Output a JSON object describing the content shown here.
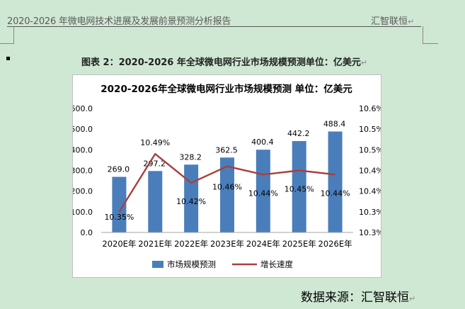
{
  "header": {
    "left_text": "2020-2026 年微电网技术进展及发展前景预测分析报告",
    "right_text": "汇智联恒",
    "return_mark": "↵"
  },
  "caption": "图表 2：2020-2026 年全球微电网行业市场规模预测单位：亿美元",
  "source": "数据来源：汇智联恒",
  "chart_data": {
    "type": "bar+line",
    "title": "2020-2026年全球微电网行业市场规模预测 单位：亿美元",
    "categories": [
      "2020E年",
      "2021E年",
      "2022E年",
      "2023E年",
      "2024E年",
      "2025E年",
      "2026E年"
    ],
    "series": [
      {
        "name": "市场规模预测",
        "type": "bar",
        "axis": "left",
        "color": "#4a7ebb",
        "values": [
          269.0,
          297.2,
          328.2,
          362.5,
          400.4,
          442.2,
          488.4
        ],
        "labels": [
          "269.0",
          "297.2",
          "328.2",
          "362.5",
          "400.4",
          "442.2",
          "488.4"
        ]
      },
      {
        "name": "增长速度",
        "type": "line",
        "axis": "right",
        "color": "#a8403e",
        "values": [
          10.35,
          10.49,
          10.42,
          10.46,
          10.44,
          10.45,
          10.44
        ],
        "labels": [
          "10.35%",
          "10.49%",
          "10.42%",
          "10.46%",
          "10.44%",
          "10.45%",
          "10.44%"
        ]
      }
    ],
    "left_axis": {
      "ylim": [
        0,
        600
      ],
      "ticks": [
        "0.0",
        "100.0",
        "200.0",
        "300.0",
        "400.0",
        "500.0",
        "600.0"
      ]
    },
    "right_axis": {
      "ylim": [
        10.3,
        10.6
      ],
      "ticks": [
        "10.3%",
        "10.3%",
        "10.4%",
        "10.4%",
        "10.5%",
        "10.5%",
        "10.6%"
      ]
    },
    "grid": false,
    "legend_position": "bottom"
  }
}
